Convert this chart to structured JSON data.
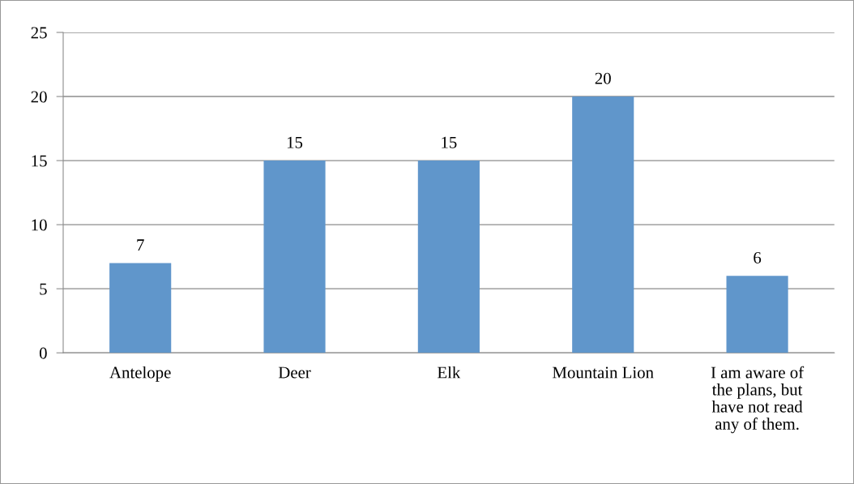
{
  "chart_data": {
    "type": "bar",
    "categories": [
      "Antelope",
      "Deer",
      "Elk",
      "Mountain Lion",
      "I am aware of\nthe plans, but\nhave not read\nany of them."
    ],
    "values": [
      7,
      15,
      15,
      20,
      6
    ],
    "color": "#6096cb",
    "ylim": [
      0,
      25
    ],
    "yticks": [
      0,
      5,
      10,
      15,
      20,
      25
    ],
    "grid": "y",
    "data_labels": true
  }
}
